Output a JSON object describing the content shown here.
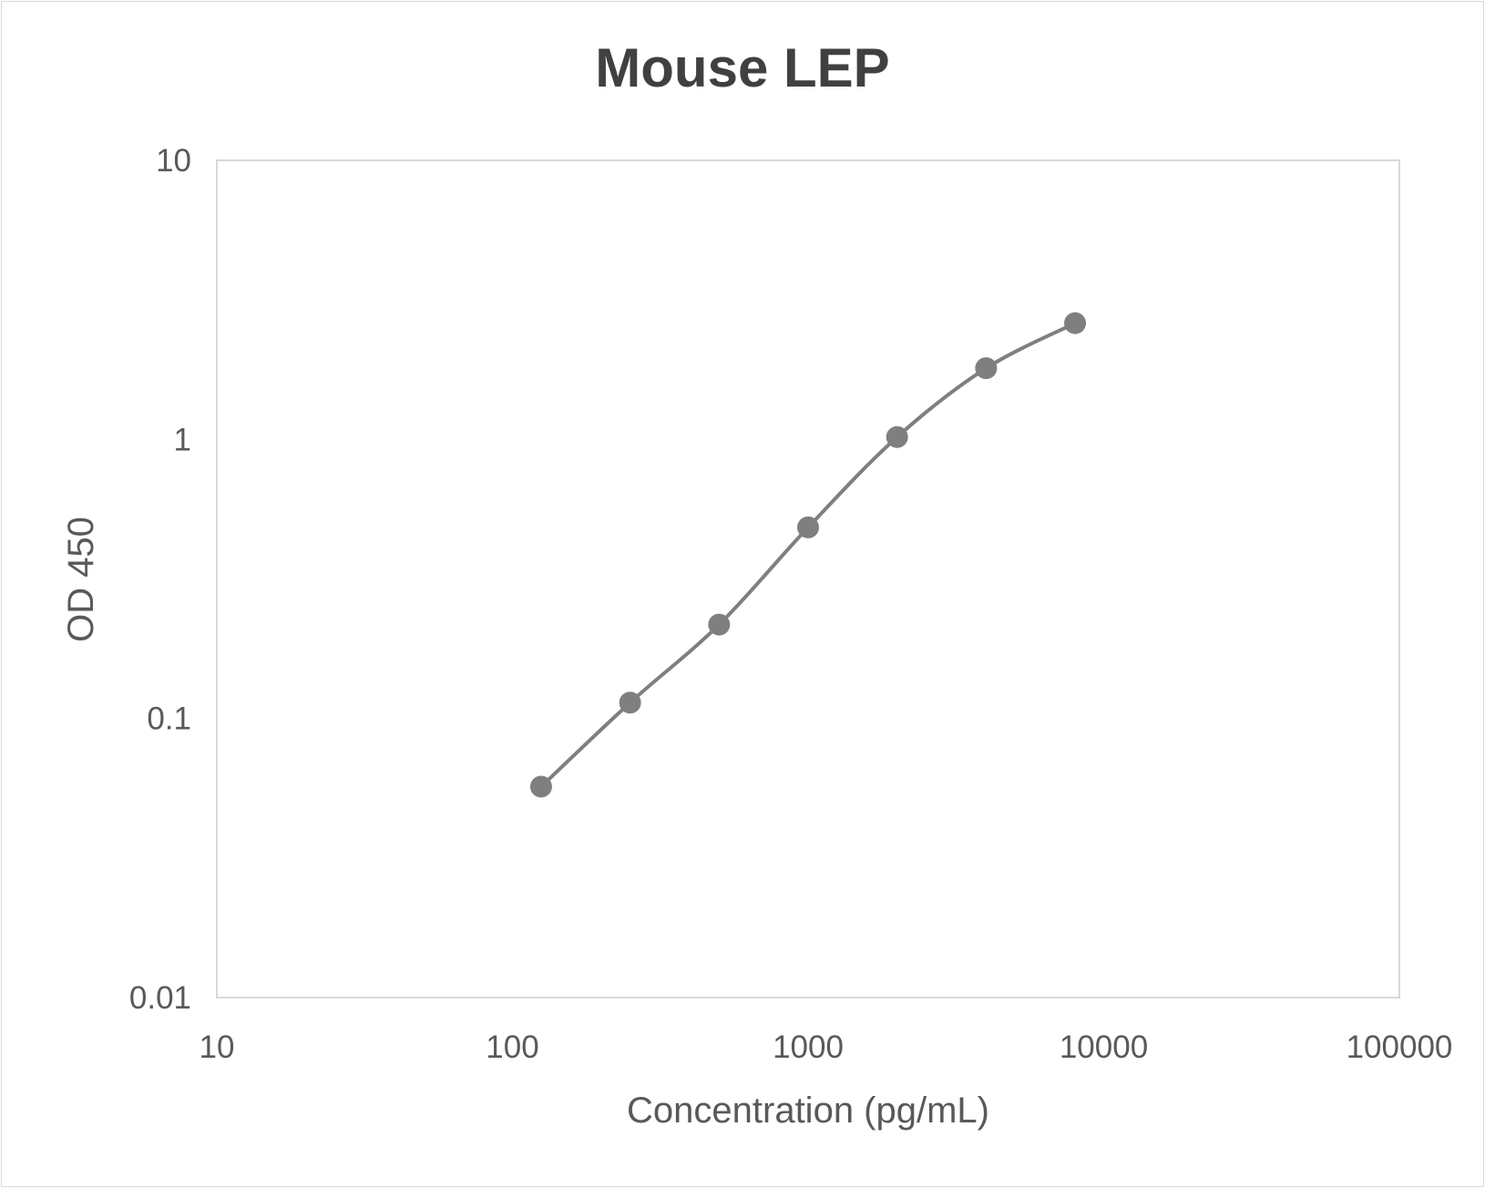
{
  "chart_data": {
    "type": "line",
    "title": "Mouse LEP",
    "xlabel": "Concentration (pg/mL)",
    "ylabel": "OD 450",
    "x_scale": "log",
    "y_scale": "log",
    "xlim": [
      10,
      100000
    ],
    "ylim": [
      0.01,
      10
    ],
    "x_ticks": [
      "10",
      "100",
      "1000",
      "10000",
      "100000"
    ],
    "y_ticks": [
      "0.01",
      "0.1",
      "1",
      "10"
    ],
    "grid": false,
    "smooth": true,
    "markers": true,
    "series": [
      {
        "x": [
          125,
          250,
          500,
          1000,
          2000,
          4000,
          8000
        ],
        "y": [
          0.057,
          0.114,
          0.217,
          0.484,
          1.02,
          1.8,
          2.61
        ],
        "color": "#7f7f7f"
      }
    ]
  }
}
